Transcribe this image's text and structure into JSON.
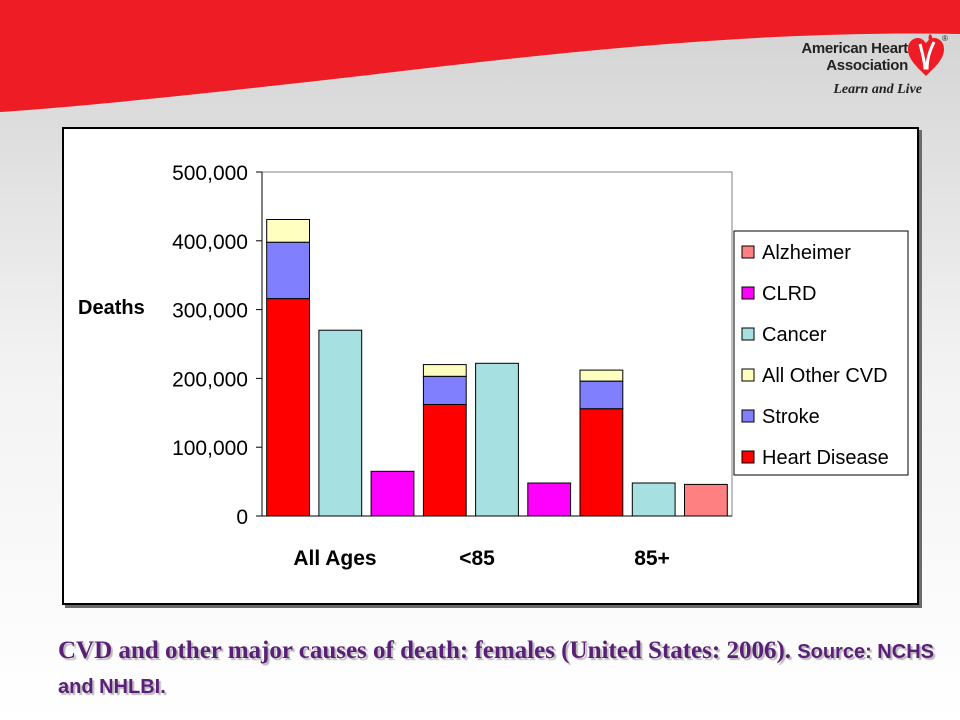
{
  "header": {
    "logo_line1": "American Heart",
    "logo_line2": "Association",
    "logo_registered": "®",
    "logo_tagline": "Learn and Live",
    "banner_color": "#ee1c25",
    "logo_icon": "heart-torch-icon"
  },
  "caption": {
    "main": "CVD and other major causes of death: females (United States: 2006).",
    "source": "Source: NCHS and NHLBI."
  },
  "chart_data": {
    "type": "bar",
    "stacked": true,
    "ylabel": "Deaths",
    "xlabel": "",
    "ylim": [
      0,
      500000
    ],
    "yticks": [
      0,
      100000,
      200000,
      300000,
      400000,
      500000
    ],
    "ytick_labels": [
      "0",
      "100,000",
      "200,000",
      "300,000",
      "400,000",
      "500,000"
    ],
    "group_labels": [
      "All Ages",
      "<85",
      "85+"
    ],
    "legend_position": "right",
    "gridlines": false,
    "series": [
      {
        "name": "Alzheimer",
        "color": "#ff8080"
      },
      {
        "name": "CLRD",
        "color": "#ff00ff"
      },
      {
        "name": "Cancer",
        "color": "#a6e0e0"
      },
      {
        "name": "All Other CVD",
        "color": "#ffffc0"
      },
      {
        "name": "Stroke",
        "color": "#8080ff"
      },
      {
        "name": "Heart Disease",
        "color": "#ff0000"
      }
    ],
    "bars": [
      {
        "group": "All Ages",
        "segments": {
          "Heart Disease": 316000,
          "Stroke": 82000,
          "All Other CVD": 33000
        }
      },
      {
        "group": "All Ages",
        "segments": {
          "Cancer": 270000
        }
      },
      {
        "group": "All Ages",
        "segments": {
          "CLRD": 65000
        }
      },
      {
        "group": "<85",
        "segments": {
          "Heart Disease": 162000,
          "Stroke": 41000,
          "All Other CVD": 17000
        }
      },
      {
        "group": "<85",
        "segments": {
          "Cancer": 222000
        }
      },
      {
        "group": "<85",
        "segments": {
          "CLRD": 48000
        }
      },
      {
        "group": "85+",
        "segments": {
          "Heart Disease": 156000,
          "Stroke": 40000,
          "All Other CVD": 16000
        }
      },
      {
        "group": "85+",
        "segments": {
          "Cancer": 48000
        }
      },
      {
        "group": "85+",
        "segments": {
          "Alzheimer": 46000
        }
      }
    ]
  }
}
